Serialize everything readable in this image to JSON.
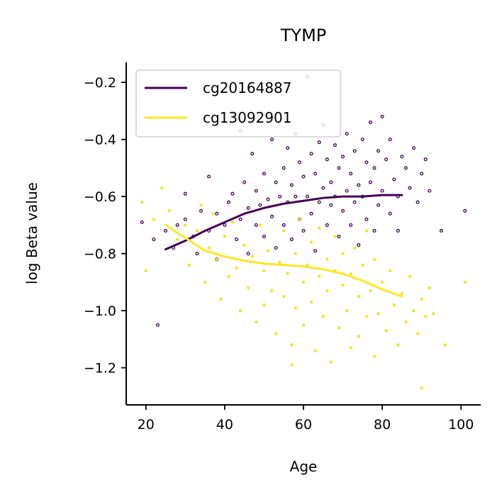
{
  "chart_data": {
    "type": "scatter",
    "title": "TYMP",
    "xlabel": "Age",
    "ylabel": "log Beta value",
    "xlim": [
      15,
      105
    ],
    "ylim": [
      -1.33,
      -0.13
    ],
    "x_ticks": [
      20,
      40,
      60,
      80,
      100
    ],
    "y_ticks": [
      -1.2,
      -1.0,
      -0.8,
      -0.6,
      -0.4,
      -0.2
    ],
    "x_tick_labels": [
      "20",
      "40",
      "60",
      "80",
      "100"
    ],
    "y_tick_labels": [
      "−1.2",
      "−1.0",
      "−0.8",
      "−0.6",
      "−0.4",
      "−0.2"
    ],
    "legend_position": "upper-left",
    "grid": false,
    "series": [
      {
        "name": "cg20164887",
        "color": "#440154",
        "trend": {
          "x": [
            25,
            30,
            35,
            40,
            45,
            50,
            55,
            60,
            65,
            70,
            75,
            80,
            85
          ],
          "y": [
            -0.785,
            -0.755,
            -0.72,
            -0.69,
            -0.66,
            -0.64,
            -0.625,
            -0.615,
            -0.605,
            -0.6,
            -0.6,
            -0.595,
            -0.595
          ]
        },
        "points": [
          [
            19,
            -0.69
          ],
          [
            22,
            -0.75
          ],
          [
            23,
            -1.05
          ],
          [
            25,
            -0.72
          ],
          [
            27,
            -0.78
          ],
          [
            28,
            -0.7
          ],
          [
            30,
            -0.68
          ],
          [
            30,
            -0.59
          ],
          [
            32,
            -0.74
          ],
          [
            33,
            -0.8
          ],
          [
            34,
            -0.65
          ],
          [
            36,
            -0.72
          ],
          [
            36,
            -0.53
          ],
          [
            38,
            -0.66
          ],
          [
            38,
            -0.82
          ],
          [
            40,
            -0.7
          ],
          [
            41,
            -0.62
          ],
          [
            42,
            -0.59
          ],
          [
            43,
            -0.75
          ],
          [
            44,
            -0.37
          ],
          [
            44,
            -0.68
          ],
          [
            45,
            -0.55
          ],
          [
            46,
            -0.8
          ],
          [
            46,
            -0.64
          ],
          [
            47,
            -0.45
          ],
          [
            48,
            -0.7
          ],
          [
            48,
            -0.58
          ],
          [
            49,
            -0.63
          ],
          [
            50,
            -0.52
          ],
          [
            50,
            -0.74
          ],
          [
            51,
            -0.61
          ],
          [
            52,
            -0.4
          ],
          [
            52,
            -0.67
          ],
          [
            53,
            -0.55
          ],
          [
            53,
            -0.78
          ],
          [
            54,
            -0.6
          ],
          [
            55,
            -0.5
          ],
          [
            55,
            -0.7
          ],
          [
            56,
            -0.43
          ],
          [
            56,
            -0.62
          ],
          [
            57,
            -0.56
          ],
          [
            57,
            -0.75
          ],
          [
            58,
            -0.38
          ],
          [
            58,
            -0.6
          ],
          [
            59,
            -0.48
          ],
          [
            59,
            -0.68
          ],
          [
            60,
            -0.53
          ],
          [
            60,
            -0.72
          ],
          [
            61,
            -0.18
          ],
          [
            61,
            -0.6
          ],
          [
            62,
            -0.45
          ],
          [
            62,
            -0.66
          ],
          [
            63,
            -0.52
          ],
          [
            63,
            -0.79
          ],
          [
            64,
            -0.41
          ],
          [
            64,
            -0.62
          ],
          [
            65,
            -0.35
          ],
          [
            65,
            -0.57
          ],
          [
            66,
            -0.47
          ],
          [
            66,
            -0.7
          ],
          [
            67,
            -0.55
          ],
          [
            67,
            -0.63
          ],
          [
            68,
            -0.42
          ],
          [
            68,
            -0.6
          ],
          [
            69,
            -0.5
          ],
          [
            69,
            -0.74
          ],
          [
            70,
            -0.46
          ],
          [
            70,
            -0.65
          ],
          [
            71,
            -0.38
          ],
          [
            71,
            -0.58
          ],
          [
            72,
            -0.52
          ],
          [
            72,
            -0.7
          ],
          [
            73,
            -0.44
          ],
          [
            73,
            -0.62
          ],
          [
            74,
            -0.56
          ],
          [
            74,
            -0.77
          ],
          [
            75,
            -0.4
          ],
          [
            75,
            -0.6
          ],
          [
            76,
            -0.48
          ],
          [
            76,
            -0.68
          ],
          [
            77,
            -0.34
          ],
          [
            77,
            -0.55
          ],
          [
            78,
            -0.5
          ],
          [
            78,
            -0.72
          ],
          [
            79,
            -0.44
          ],
          [
            79,
            -0.63
          ],
          [
            80,
            -0.32
          ],
          [
            80,
            -0.58
          ],
          [
            81,
            -0.47
          ],
          [
            82,
            -0.66
          ],
          [
            82,
            -0.4
          ],
          [
            83,
            -0.54
          ],
          [
            84,
            -0.6
          ],
          [
            84,
            -0.72
          ],
          [
            85,
            -0.46
          ],
          [
            86,
            -0.5
          ],
          [
            87,
            -0.57
          ],
          [
            88,
            -0.43
          ],
          [
            89,
            -0.62
          ],
          [
            90,
            -0.52
          ],
          [
            91,
            -0.47
          ],
          [
            92,
            -0.58
          ],
          [
            95,
            -0.72
          ],
          [
            101,
            -0.65
          ]
        ]
      },
      {
        "name": "cg13092901",
        "color": "#fde725",
        "trend": {
          "x": [
            25,
            30,
            35,
            40,
            45,
            50,
            55,
            60,
            65,
            70,
            75,
            80,
            85
          ],
          "y": [
            -0.7,
            -0.745,
            -0.79,
            -0.81,
            -0.825,
            -0.835,
            -0.84,
            -0.845,
            -0.855,
            -0.87,
            -0.895,
            -0.925,
            -0.95
          ]
        },
        "points": [
          [
            19,
            -0.62
          ],
          [
            20,
            -0.86
          ],
          [
            22,
            -0.68
          ],
          [
            24,
            -0.57
          ],
          [
            26,
            -0.65
          ],
          [
            28,
            -0.75
          ],
          [
            30,
            -0.7
          ],
          [
            31,
            -0.84
          ],
          [
            33,
            -0.72
          ],
          [
            34,
            -0.63
          ],
          [
            35,
            -0.9
          ],
          [
            36,
            -0.78
          ],
          [
            37,
            -0.66
          ],
          [
            38,
            -0.82
          ],
          [
            39,
            -0.96
          ],
          [
            40,
            -0.74
          ],
          [
            41,
            -0.88
          ],
          [
            42,
            -0.69
          ],
          [
            43,
            -0.85
          ],
          [
            44,
            -1.0
          ],
          [
            45,
            -0.77
          ],
          [
            46,
            -0.92
          ],
          [
            47,
            -0.81
          ],
          [
            48,
            -1.04
          ],
          [
            49,
            -0.7
          ],
          [
            50,
            -0.86
          ],
          [
            50,
            -0.98
          ],
          [
            51,
            -0.79
          ],
          [
            52,
            -0.93
          ],
          [
            53,
            -1.08
          ],
          [
            54,
            -0.83
          ],
          [
            55,
            -0.72
          ],
          [
            55,
            -0.95
          ],
          [
            56,
            -0.87
          ],
          [
            57,
            -1.12
          ],
          [
            58,
            -0.8
          ],
          [
            58,
            -0.99
          ],
          [
            59,
            -0.68
          ],
          [
            60,
            -0.9
          ],
          [
            60,
            -1.05
          ],
          [
            61,
            -0.84
          ],
          [
            62,
            -0.76
          ],
          [
            62,
            -0.97
          ],
          [
            63,
            -1.14
          ],
          [
            64,
            -0.88
          ],
          [
            64,
            -0.71
          ],
          [
            65,
            -1.02
          ],
          [
            66,
            -0.82
          ],
          [
            66,
            -0.93
          ],
          [
            67,
            -1.18
          ],
          [
            68,
            -0.86
          ],
          [
            68,
            -0.74
          ],
          [
            69,
            -1.06
          ],
          [
            70,
            -0.91
          ],
          [
            70,
            -0.8
          ],
          [
            71,
            -1.0
          ],
          [
            72,
            -0.87
          ],
          [
            72,
            -1.13
          ],
          [
            73,
            -0.78
          ],
          [
            74,
            -0.95
          ],
          [
            74,
            -1.09
          ],
          [
            75,
            -0.84
          ],
          [
            76,
            -1.02
          ],
          [
            76,
            -0.72
          ],
          [
            77,
            -0.93
          ],
          [
            78,
            -1.16
          ],
          [
            78,
            -0.82
          ],
          [
            79,
            -1.01
          ],
          [
            80,
            -0.9
          ],
          [
            81,
            -1.07
          ],
          [
            82,
            -0.86
          ],
          [
            83,
            -0.98
          ],
          [
            84,
            -1.12
          ],
          [
            85,
            -0.94
          ],
          [
            86,
            -1.04
          ],
          [
            87,
            -0.88
          ],
          [
            88,
            -1.0
          ],
          [
            89,
            -1.08
          ],
          [
            90,
            -0.96
          ],
          [
            91,
            -1.02
          ],
          [
            92,
            -0.92
          ],
          [
            93,
            -1.01
          ],
          [
            96,
            -1.12
          ],
          [
            101,
            -0.9
          ],
          [
            90,
            -1.27
          ],
          [
            57,
            -1.19
          ]
        ]
      }
    ]
  }
}
